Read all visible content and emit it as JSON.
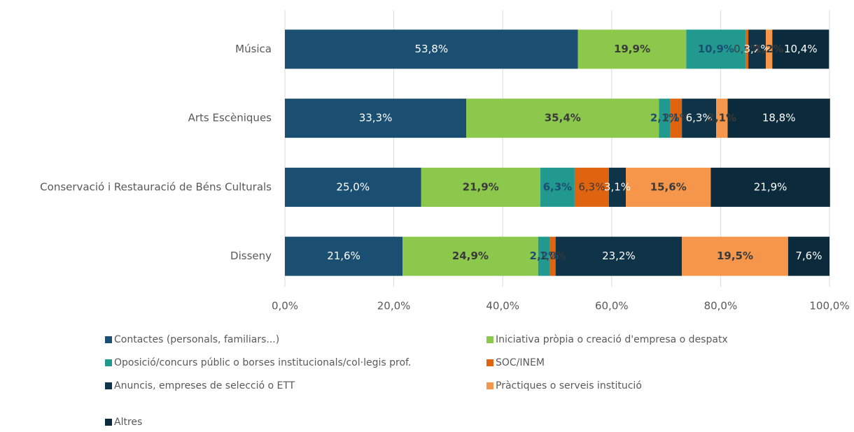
{
  "chart_data": {
    "type": "stacked-bar-horizontal",
    "categories": [
      "Música",
      "Arts Escèniques",
      "Conservació i Restauració de Béns Culturals",
      "Disseny"
    ],
    "series": [
      {
        "name": "Contactes (personals, familiars...)",
        "color": "#1b4f72",
        "values": [
          53.8,
          33.3,
          25.0,
          21.6
        ],
        "value_labels": [
          "53,8%",
          "33,3%",
          "25,0%",
          "21,6%"
        ]
      },
      {
        "name": "Iniciativa pròpia o creació d'empresa o despatx",
        "color": "#8cc84b",
        "values": [
          19.9,
          35.4,
          21.9,
          24.9
        ],
        "value_labels": [
          "19,9%",
          "35,4%",
          "21,9%",
          "24,9%"
        ]
      },
      {
        "name": "Oposició/concurs públic o borses institucionals/col·legis prof.",
        "color": "#22998f",
        "values": [
          10.9,
          2.1,
          6.3,
          2.2
        ],
        "value_labels": [
          "10,9%",
          "2,1%",
          "6,3%",
          "2,2%"
        ]
      },
      {
        "name": "SOC/INEM",
        "color": "#e0640f",
        "values": [
          0.5,
          2.1,
          6.3,
          1.0
        ],
        "value_labels": [
          "0,5%",
          "2,1%",
          "6,3%",
          "1,0%"
        ]
      },
      {
        "name": "Anuncis, empreses de selecció o ETT",
        "color": "#0f3347",
        "values": [
          3.2,
          6.3,
          3.1,
          23.2
        ],
        "value_labels": [
          "3,2%",
          "6,3%",
          "3,1%",
          "23,2%"
        ]
      },
      {
        "name": "Pràctiques o serveis institució",
        "color": "#f5964a",
        "values": [
          1.2,
          2.1,
          15.6,
          19.5
        ],
        "value_labels": [
          "1,2%",
          "2,1%",
          "15,6%",
          "19,5%"
        ]
      },
      {
        "name": "Altres",
        "color": "#0b2a3b",
        "values": [
          10.4,
          18.8,
          21.9,
          7.6
        ],
        "value_labels": [
          "10,4%",
          "18,8%",
          "21,9%",
          "7,6%"
        ]
      }
    ],
    "xlim": [
      0,
      100
    ],
    "xticks": [
      {
        "value": 0,
        "label": "0,0%"
      },
      {
        "value": 20,
        "label": "20,0%"
      },
      {
        "value": 40,
        "label": "40,0%"
      },
      {
        "value": 60,
        "label": "60,0%"
      },
      {
        "value": 80,
        "label": "80,0%"
      },
      {
        "value": 100,
        "label": "100,0%"
      }
    ],
    "grid": true,
    "legend": "bottom"
  }
}
